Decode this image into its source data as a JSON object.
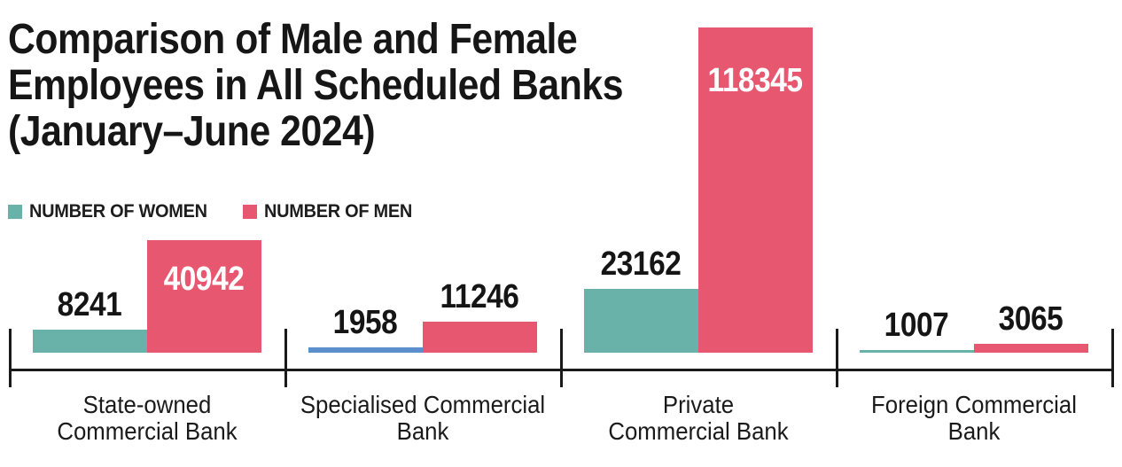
{
  "page": {
    "background": "#ffffff",
    "text_color": "#1a1a1a"
  },
  "title": {
    "lines": [
      "Comparison of Male and Female",
      "Employees in All Scheduled Banks",
      "(January–June 2024)"
    ],
    "full": "Comparison of Male and Female Employees in All Scheduled Banks (January–June 2024)"
  },
  "legend": {
    "items": [
      {
        "label": "NUMBER OF WOMEN",
        "color": "#69b2aa"
      },
      {
        "label": "NUMBER OF MEN",
        "color": "#e75870"
      }
    ]
  },
  "chart_data": {
    "type": "bar",
    "title": "Comparison of Male and Female Employees in All Scheduled Banks (January–June 2024)",
    "categories": [
      "State-owned Commercial Bank",
      "Specialised Commercial Bank",
      "Private Commercial Bank",
      "Foreign Commercial Bank"
    ],
    "category_label_lines": [
      [
        "State-owned",
        "Commercial Bank"
      ],
      [
        "Specialised Commercial",
        "Bank"
      ],
      [
        "Private",
        "Commercial Bank"
      ],
      [
        "Foreign Commercial",
        "Bank"
      ]
    ],
    "series": [
      {
        "name": "NUMBER OF WOMEN",
        "color": "#69b2aa",
        "values": [
          8241,
          1958,
          23162,
          1007
        ],
        "bar_colors": [
          "#69b2aa",
          "#5b90cc",
          "#69b2aa",
          "#69b2aa"
        ],
        "value_label_placement": [
          "above",
          "above",
          "above",
          "above"
        ],
        "value_label_colors": [
          "#151515",
          "#151515",
          "#151515",
          "#151515"
        ]
      },
      {
        "name": "NUMBER OF MEN",
        "color": "#e75870",
        "values": [
          40942,
          11246,
          118345,
          3065
        ],
        "bar_colors": [
          "#e75870",
          "#e75870",
          "#e75870",
          "#e75870"
        ],
        "value_label_placement": [
          "inside",
          "above",
          "inside",
          "above"
        ],
        "value_label_colors": [
          "#ffffff",
          "#151515",
          "#ffffff",
          "#151515"
        ]
      }
    ],
    "ylim": [
      0,
      118345
    ],
    "xlabel": "",
    "ylabel": "",
    "grid": false,
    "legend_position": "top-left",
    "axis_color": "#1a1a1a"
  }
}
